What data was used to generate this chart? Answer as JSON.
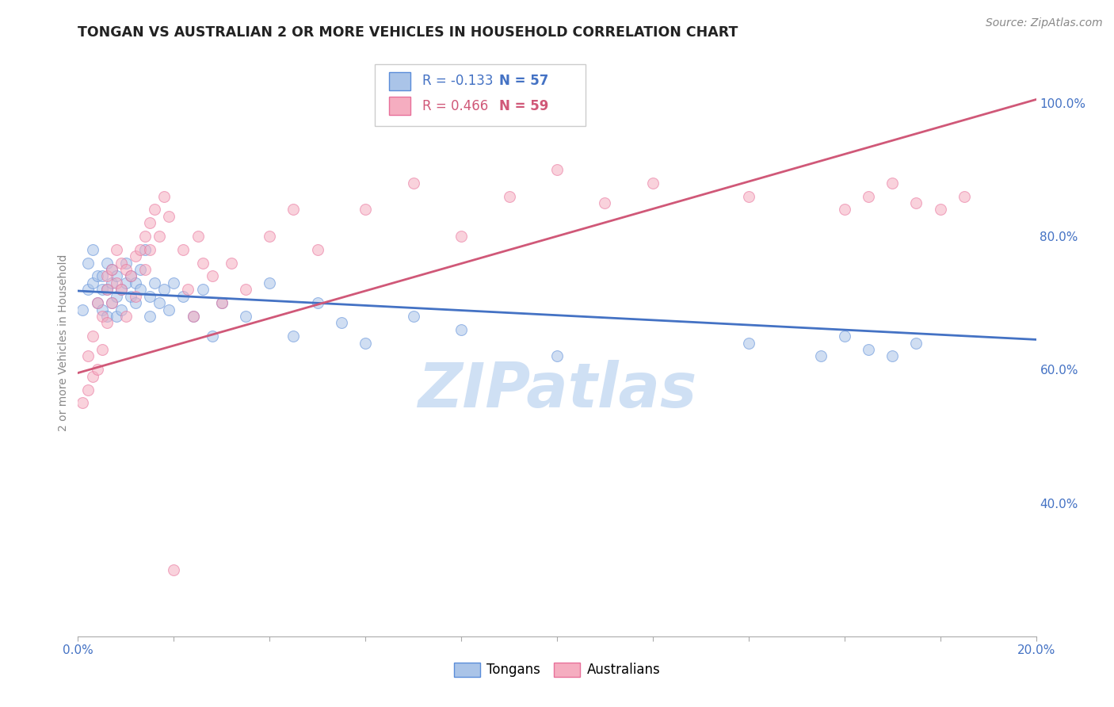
{
  "title": "TONGAN VS AUSTRALIAN 2 OR MORE VEHICLES IN HOUSEHOLD CORRELATION CHART",
  "source": "Source: ZipAtlas.com",
  "ylabel": "2 or more Vehicles in Household",
  "xlim": [
    0.0,
    0.2
  ],
  "ylim": [
    0.2,
    1.08
  ],
  "xticks": [
    0.0,
    0.02,
    0.04,
    0.06,
    0.08,
    0.1,
    0.12,
    0.14,
    0.16,
    0.18,
    0.2
  ],
  "yticks_right": [
    0.4,
    0.6,
    0.8,
    1.0
  ],
  "ytick_right_labels": [
    "40.0%",
    "60.0%",
    "80.0%",
    "100.0%"
  ],
  "tongans_color": "#aac4e8",
  "australians_color": "#f5adc0",
  "tongans_edge_color": "#5b8dd9",
  "australians_edge_color": "#e8709a",
  "tongans_line_color": "#4472c4",
  "australians_line_color": "#d05878",
  "legend_R_tongans": "-0.133",
  "legend_N_tongans": "57",
  "legend_R_australians": "0.466",
  "legend_N_australians": "59",
  "watermark": "ZIPatlas",
  "watermark_color": "#b0ccee",
  "background_color": "#ffffff",
  "tongans_x": [
    0.001,
    0.002,
    0.002,
    0.003,
    0.003,
    0.004,
    0.004,
    0.005,
    0.005,
    0.005,
    0.006,
    0.006,
    0.006,
    0.007,
    0.007,
    0.007,
    0.008,
    0.008,
    0.008,
    0.009,
    0.009,
    0.01,
    0.01,
    0.011,
    0.011,
    0.012,
    0.012,
    0.013,
    0.013,
    0.014,
    0.015,
    0.015,
    0.016,
    0.017,
    0.018,
    0.019,
    0.02,
    0.022,
    0.024,
    0.026,
    0.028,
    0.03,
    0.035,
    0.04,
    0.045,
    0.05,
    0.055,
    0.06,
    0.07,
    0.08,
    0.1,
    0.14,
    0.155,
    0.16,
    0.165,
    0.17,
    0.175
  ],
  "tongans_y": [
    0.69,
    0.72,
    0.76,
    0.73,
    0.78,
    0.74,
    0.7,
    0.72,
    0.69,
    0.74,
    0.76,
    0.72,
    0.68,
    0.75,
    0.73,
    0.7,
    0.74,
    0.71,
    0.68,
    0.72,
    0.69,
    0.76,
    0.73,
    0.74,
    0.71,
    0.73,
    0.7,
    0.75,
    0.72,
    0.78,
    0.71,
    0.68,
    0.73,
    0.7,
    0.72,
    0.69,
    0.73,
    0.71,
    0.68,
    0.72,
    0.65,
    0.7,
    0.68,
    0.73,
    0.65,
    0.7,
    0.67,
    0.64,
    0.68,
    0.66,
    0.62,
    0.64,
    0.62,
    0.65,
    0.63,
    0.62,
    0.64
  ],
  "australians_x": [
    0.001,
    0.002,
    0.002,
    0.003,
    0.003,
    0.004,
    0.004,
    0.005,
    0.005,
    0.006,
    0.006,
    0.006,
    0.007,
    0.007,
    0.008,
    0.008,
    0.009,
    0.009,
    0.01,
    0.01,
    0.011,
    0.012,
    0.012,
    0.013,
    0.014,
    0.014,
    0.015,
    0.015,
    0.016,
    0.017,
    0.018,
    0.019,
    0.02,
    0.022,
    0.023,
    0.024,
    0.025,
    0.026,
    0.028,
    0.03,
    0.032,
    0.035,
    0.04,
    0.045,
    0.05,
    0.06,
    0.07,
    0.08,
    0.09,
    0.1,
    0.11,
    0.12,
    0.14,
    0.16,
    0.165,
    0.17,
    0.175,
    0.18,
    0.185
  ],
  "australians_y": [
    0.55,
    0.57,
    0.62,
    0.59,
    0.65,
    0.6,
    0.7,
    0.63,
    0.68,
    0.72,
    0.67,
    0.74,
    0.7,
    0.75,
    0.73,
    0.78,
    0.76,
    0.72,
    0.75,
    0.68,
    0.74,
    0.77,
    0.71,
    0.78,
    0.8,
    0.75,
    0.82,
    0.78,
    0.84,
    0.8,
    0.86,
    0.83,
    0.3,
    0.78,
    0.72,
    0.68,
    0.8,
    0.76,
    0.74,
    0.7,
    0.76,
    0.72,
    0.8,
    0.84,
    0.78,
    0.84,
    0.88,
    0.8,
    0.86,
    0.9,
    0.85,
    0.88,
    0.86,
    0.84,
    0.86,
    0.88,
    0.85,
    0.84,
    0.86
  ],
  "dot_size": 100,
  "dot_alpha": 0.55,
  "grid_color": "#d8d8d8",
  "grid_alpha": 0.8,
  "title_fontsize": 12.5,
  "label_fontsize": 10,
  "tick_fontsize": 11,
  "source_fontsize": 10
}
